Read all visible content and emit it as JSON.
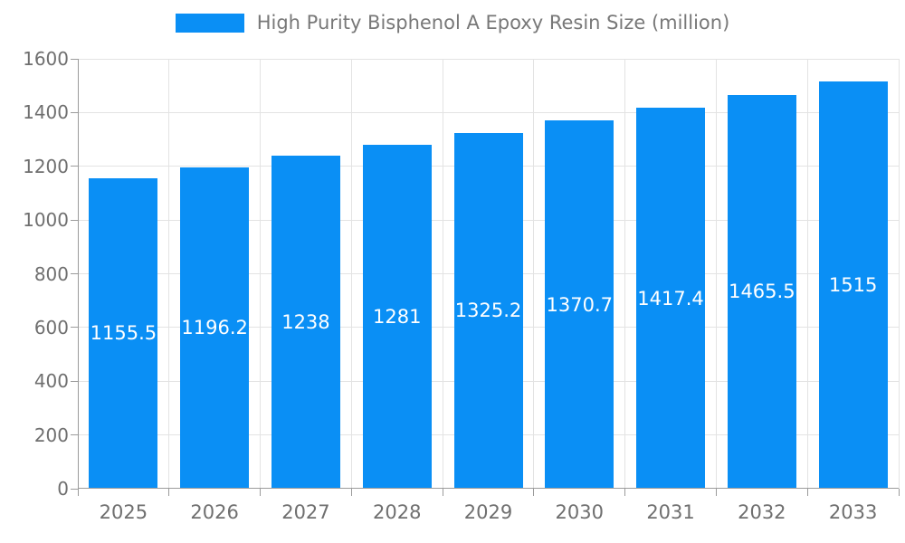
{
  "legend": {
    "label": "High Purity Bisphenol A Epoxy Resin Size (million)"
  },
  "chart_data": {
    "type": "bar",
    "title": "High Purity Bisphenol A Epoxy Resin Size (million)",
    "categories": [
      "2025",
      "2026",
      "2027",
      "2028",
      "2029",
      "2030",
      "2031",
      "2032",
      "2033"
    ],
    "values": [
      1155.5,
      1196.2,
      1238,
      1281,
      1325.2,
      1370.7,
      1417.4,
      1465.5,
      1515
    ],
    "value_labels": [
      "1155.5",
      "1196.2",
      "1238",
      "1281",
      "1325.2",
      "1370.7",
      "1417.4",
      "1465.5",
      "1515"
    ],
    "xlabel": "",
    "ylabel": "",
    "ylim": [
      0,
      1600
    ],
    "yticks": [
      0,
      200,
      400,
      600,
      800,
      1000,
      1200,
      1400,
      1600
    ],
    "grid": true,
    "legend_position": "top-center",
    "bar_label_position": "inside-middle"
  },
  "colors": {
    "bar": "#0a8ff5",
    "axis": "#9b9b9b",
    "gridline": "#e3e3e3",
    "tick_text": "#6f6f6f",
    "legend_text": "#787878",
    "bar_label_text": "#ffffff",
    "background": "#ffffff"
  }
}
